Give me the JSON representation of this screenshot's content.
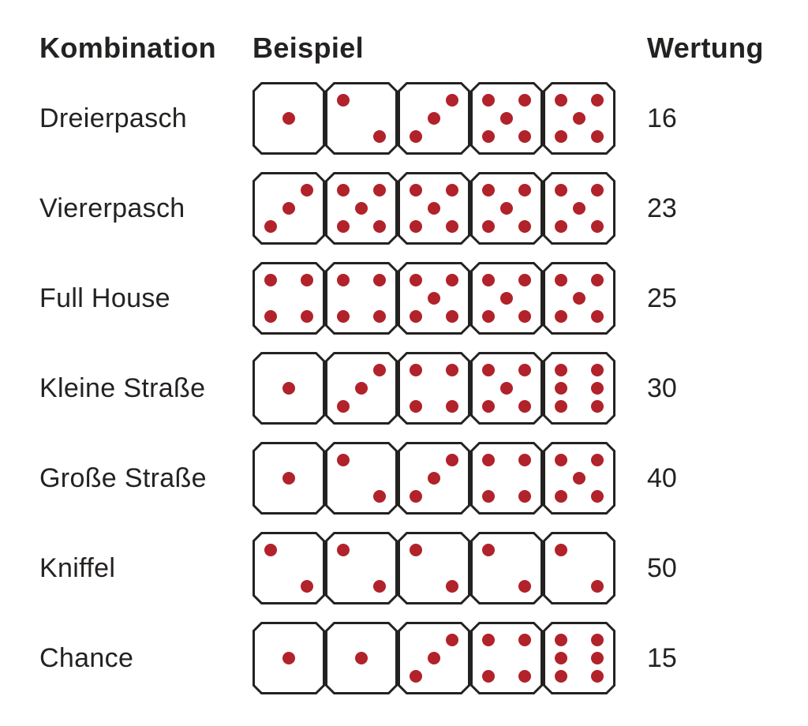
{
  "headers": {
    "combination": "Kombination",
    "example": "Beispiel",
    "score": "Wertung"
  },
  "die_style": {
    "size": 92,
    "stroke_color": "#242221",
    "stroke_width": 3,
    "corner_cut": 10,
    "pip_color": "#b1222a",
    "pip_radius": 8
  },
  "rows": [
    {
      "name": "Dreierpasch",
      "dice": [
        1,
        2,
        3,
        5,
        5
      ],
      "score": "16"
    },
    {
      "name": "Viererpasch",
      "dice": [
        3,
        5,
        5,
        5,
        5
      ],
      "score": "23"
    },
    {
      "name": "Full House",
      "dice": [
        4,
        4,
        5,
        5,
        5
      ],
      "score": "25"
    },
    {
      "name": "Kleine Straße",
      "dice": [
        1,
        3,
        4,
        5,
        6
      ],
      "score": "30"
    },
    {
      "name": "Große Straße",
      "dice": [
        1,
        2,
        3,
        4,
        5
      ],
      "score": "40"
    },
    {
      "name": "Kniffel",
      "dice": [
        2,
        2,
        2,
        2,
        2
      ],
      "score": "50"
    },
    {
      "name": "Chance",
      "dice": [
        1,
        1,
        3,
        4,
        6
      ],
      "score": "15"
    }
  ]
}
